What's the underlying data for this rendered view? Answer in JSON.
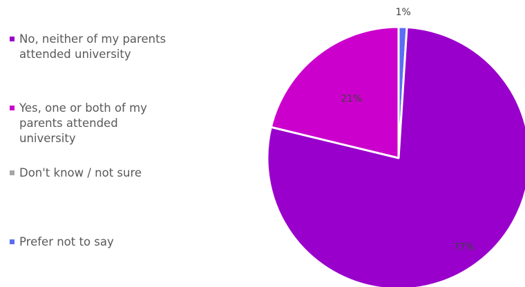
{
  "chart_data": {
    "type": "pie",
    "categories": [
      "No, neither of my parents attended university",
      "Yes, one or both of my parents attended university",
      "Don't know / not sure",
      "Prefer not to say"
    ],
    "values": [
      77,
      21,
      0,
      1
    ],
    "data_labels": [
      "77%",
      "21%",
      "",
      "1%"
    ],
    "colors": [
      "#9900cc",
      "#cc00cc",
      "#a6a6a6",
      "#5b6cf5"
    ],
    "legend_position": "left",
    "title": ""
  }
}
